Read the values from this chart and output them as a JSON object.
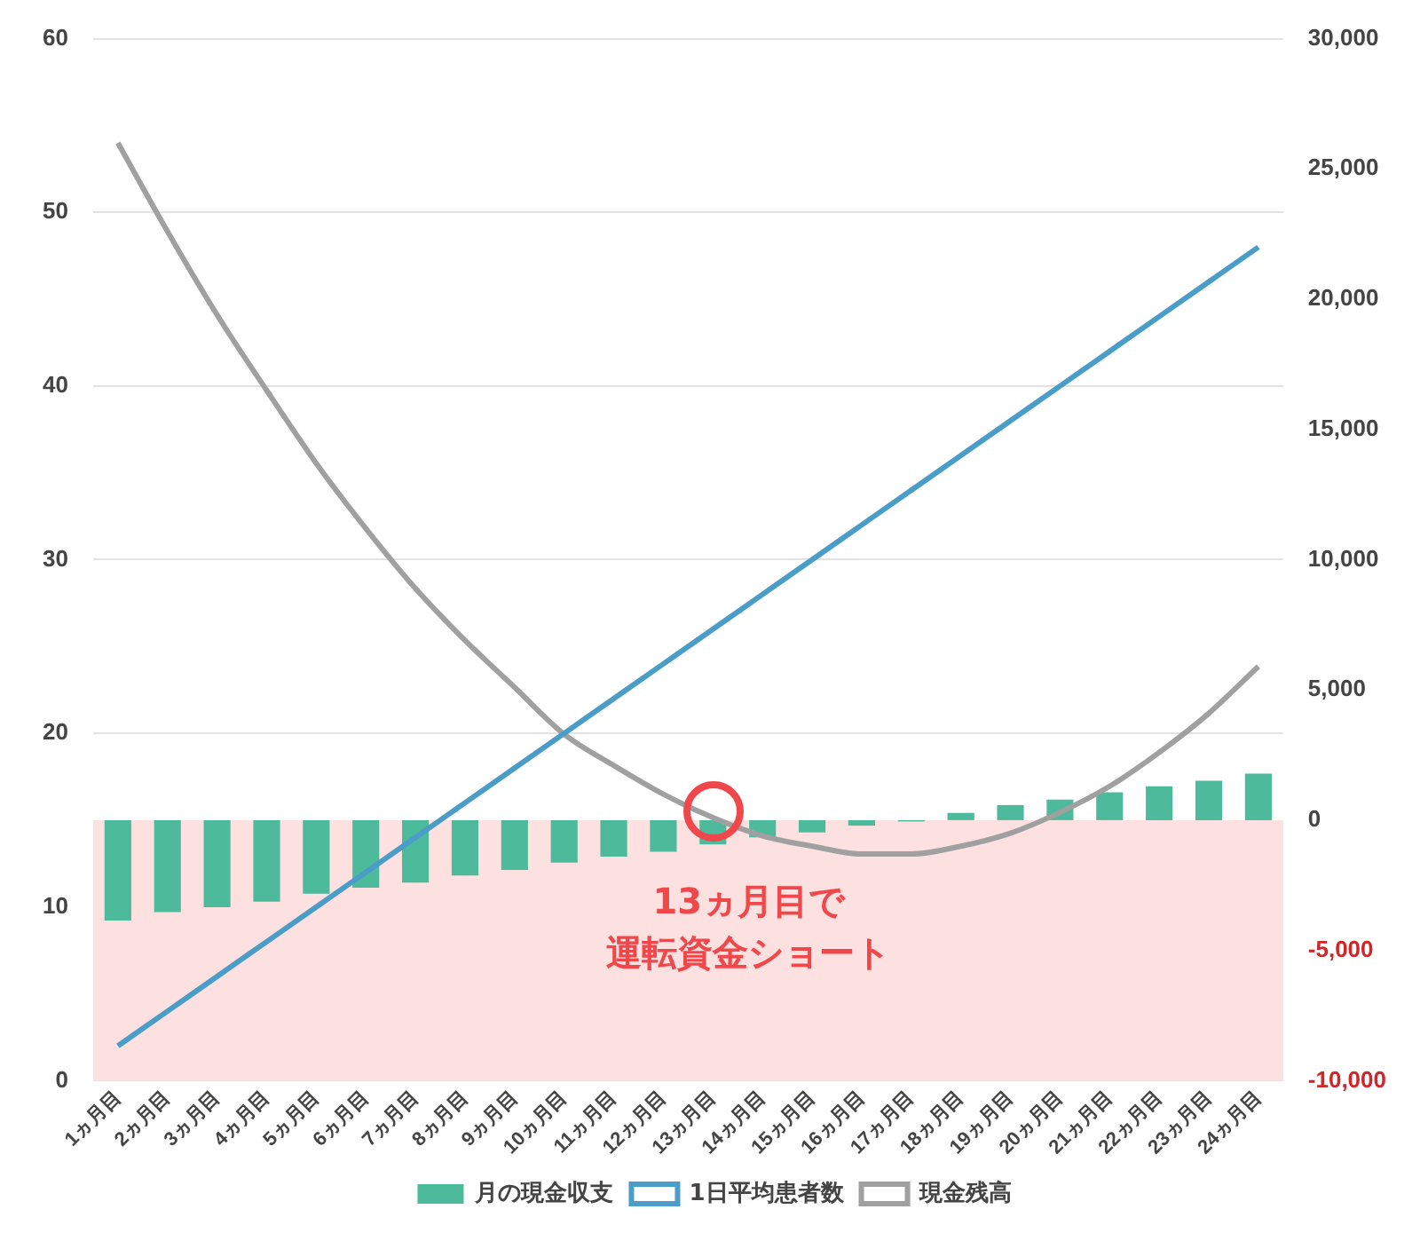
{
  "chart_data": {
    "type": "bar",
    "categories": [
      "1ヵ月目",
      "2ヵ月目",
      "3ヵ月目",
      "4ヵ月目",
      "5ヵ月目",
      "6ヵ月目",
      "7ヵ月目",
      "8ヵ月目",
      "9ヵ月目",
      "10ヵ月目",
      "11ヵ月目",
      "12ヵ月目",
      "13ヵ月目",
      "14ヵ月目",
      "15ヵ月目",
      "16ヵ月目",
      "17ヵ月目",
      "18ヵ月目",
      "19ヵ月目",
      "20ヵ月目",
      "21ヵ月目",
      "22ヵ月目",
      "23ヵ月目",
      "24ヵ月目"
    ],
    "series": [
      {
        "name": "月の現金収支",
        "axis": "y2",
        "color": "#4dbb9b",
        "values": [
          -3850,
          -3530,
          -3340,
          -3130,
          -2820,
          -2590,
          -2400,
          -2120,
          -1910,
          -1630,
          -1400,
          -1210,
          -930,
          -660,
          -470,
          -210,
          -50,
          280,
          580,
          790,
          1070,
          1300,
          1510,
          1790
        ]
      },
      {
        "name": "1日平均患者数",
        "type": "line",
        "axis": "y",
        "color": "#4a9cc9",
        "values": [
          2,
          4,
          6,
          8,
          10,
          12,
          14,
          16,
          18,
          20,
          22,
          24,
          26,
          28,
          30,
          32,
          34,
          36,
          38,
          40,
          42,
          44,
          46,
          48
        ]
      },
      {
        "name": "現金残高",
        "type": "line",
        "axis": "y2",
        "color": "#a0a0a0",
        "values": [
          26000,
          22600,
          19400,
          16500,
          13700,
          11200,
          8900,
          6900,
          5100,
          3300,
          2100,
          1000,
          100,
          -600,
          -1000,
          -1300,
          -1300,
          -1000,
          -500,
          300,
          1300,
          2600,
          4100,
          5900
        ]
      }
    ],
    "ylim": [
      0,
      60
    ],
    "yticks": [
      0,
      10,
      20,
      30,
      40,
      50,
      60
    ],
    "y2lim": [
      -10000,
      30000
    ],
    "y2ticks": [
      {
        "value": -10000,
        "label": "-10,000"
      },
      {
        "value": -5000,
        "label": "-5,000"
      },
      0,
      {
        "value": 5000,
        "label": "5,000"
      },
      {
        "value": 10000,
        "label": "10,000"
      },
      {
        "value": 15000,
        "label": "15,000"
      },
      {
        "value": 20000,
        "label": "20,000"
      },
      {
        "value": 25000,
        "label": "25,000"
      },
      {
        "value": 30000,
        "label": "30,000"
      }
    ],
    "bands": [
      {
        "axis": "y2",
        "from": -10000,
        "to": 0,
        "color": "#fde0e0"
      }
    ],
    "annotations": [
      "13ヵ月目で",
      "運転資金ショート"
    ],
    "grid": "y",
    "legend": "bottom",
    "marker": "none"
  }
}
